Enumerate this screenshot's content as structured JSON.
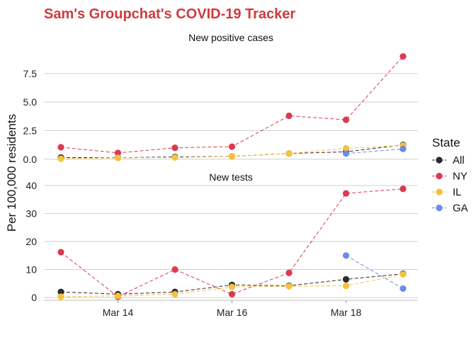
{
  "title": "Sam's Groupchat's COVID-19 Tracker",
  "y_axis_label": "Per 100,000 residents",
  "legend_title": "State",
  "x_tick_labels": [
    "Mar 14",
    "Mar 16",
    "Mar 18"
  ],
  "chart_data": [
    {
      "type": "line",
      "title": "New positive cases",
      "x": [
        "Mar 13",
        "Mar 14",
        "Mar 15",
        "Mar 16",
        "Mar 17",
        "Mar 18",
        "Mar 19"
      ],
      "ylim": [
        -0.2,
        9.6
      ],
      "yticks": [
        0,
        2.5,
        5,
        7.5
      ],
      "ytick_labels": [
        "0.0",
        "2.5",
        "5.0",
        "7.5"
      ],
      "grid": true,
      "series": [
        {
          "name": "All",
          "color": "#2b2b2b",
          "values": [
            0.15,
            0.13,
            0.2,
            0.25,
            0.5,
            0.65,
            1.25
          ]
        },
        {
          "name": "NY",
          "color": "#dc3a4f",
          "values": [
            1.05,
            0.55,
            1.0,
            1.1,
            3.8,
            3.45,
            9.0
          ]
        },
        {
          "name": "IL",
          "color": "#f5c23c",
          "values": [
            0.05,
            0.12,
            0.15,
            0.25,
            0.5,
            0.95,
            1.2
          ]
        },
        {
          "name": "GA",
          "color": "#6b8de3",
          "values": [
            null,
            null,
            null,
            null,
            null,
            0.5,
            0.9
          ]
        }
      ]
    },
    {
      "type": "line",
      "title": "New tests",
      "x": [
        "Mar 13",
        "Mar 14",
        "Mar 15",
        "Mar 16",
        "Mar 17",
        "Mar 18",
        "Mar 19"
      ],
      "ylim": [
        -1.5,
        42.5
      ],
      "yticks": [
        0,
        10,
        20,
        30,
        40
      ],
      "ytick_labels": [
        "0",
        "10",
        "20",
        "30",
        "40"
      ],
      "grid": true,
      "series": [
        {
          "name": "All",
          "color": "#2b2b2b",
          "values": [
            2.0,
            1.2,
            2.0,
            4.5,
            4.2,
            6.5,
            8.5
          ]
        },
        {
          "name": "NY",
          "color": "#dc3a4f",
          "values": [
            16.2,
            0.3,
            10.0,
            1.2,
            8.8,
            37.2,
            38.8
          ]
        },
        {
          "name": "IL",
          "color": "#f5c23c",
          "values": [
            0.3,
            0.6,
            1.2,
            3.8,
            4.0,
            4.2,
            8.3
          ]
        },
        {
          "name": "GA",
          "color": "#6b8de3",
          "values": [
            null,
            null,
            null,
            null,
            null,
            15.0,
            3.2
          ]
        }
      ]
    }
  ]
}
